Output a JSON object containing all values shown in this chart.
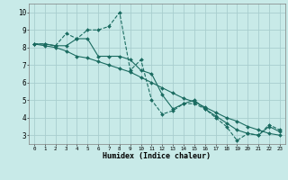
{
  "xlabel": "Humidex (Indice chaleur)",
  "bg_color": "#c8eae8",
  "grid_color": "#a8cece",
  "line_color": "#1a6b60",
  "xlim": [
    -0.5,
    23.5
  ],
  "ylim": [
    2.5,
    10.5
  ],
  "xticks": [
    0,
    1,
    2,
    3,
    4,
    5,
    6,
    7,
    8,
    9,
    10,
    11,
    12,
    13,
    14,
    15,
    16,
    17,
    18,
    19,
    20,
    21,
    22,
    23
  ],
  "yticks": [
    3,
    4,
    5,
    6,
    7,
    8,
    9,
    10
  ],
  "line_dashed_x": [
    0,
    1,
    2,
    3,
    4,
    5,
    6,
    7,
    8,
    9,
    10,
    11,
    12,
    13,
    14,
    15,
    16,
    17,
    18,
    19,
    20,
    21,
    22,
    23
  ],
  "line_dashed_y": [
    8.2,
    8.2,
    8.1,
    8.8,
    8.5,
    9.0,
    9.0,
    9.2,
    10.0,
    6.7,
    7.3,
    5.0,
    4.2,
    4.4,
    4.8,
    4.8,
    4.5,
    4.0,
    3.5,
    2.7,
    3.1,
    3.0,
    3.6,
    3.3
  ],
  "line_solid1_x": [
    0,
    1,
    2,
    3,
    4,
    5,
    6,
    7,
    8,
    9,
    10,
    11,
    12,
    13,
    14,
    15,
    16,
    17,
    18,
    19,
    20,
    21,
    22,
    23
  ],
  "line_solid1_y": [
    8.2,
    8.2,
    8.1,
    8.1,
    8.5,
    8.5,
    7.5,
    7.5,
    7.5,
    7.3,
    6.7,
    6.5,
    5.3,
    4.5,
    4.8,
    5.0,
    4.5,
    4.1,
    3.7,
    3.3,
    3.1,
    3.0,
    3.5,
    3.2
  ],
  "line_solid2_x": [
    0,
    1,
    2,
    3,
    4,
    5,
    6,
    7,
    8,
    9,
    10,
    11,
    12,
    13,
    14,
    15,
    16,
    17,
    18,
    19,
    20,
    21,
    22,
    23
  ],
  "line_solid2_y": [
    8.2,
    8.1,
    8.0,
    7.8,
    7.5,
    7.4,
    7.2,
    7.0,
    6.8,
    6.6,
    6.3,
    6.0,
    5.7,
    5.4,
    5.1,
    4.9,
    4.6,
    4.3,
    4.0,
    3.8,
    3.5,
    3.3,
    3.1,
    3.0
  ]
}
